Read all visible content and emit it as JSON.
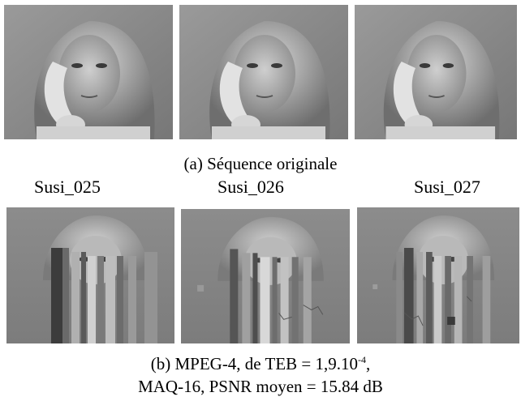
{
  "original": {
    "caption": "(a) Séquence originale"
  },
  "sequence_labels": [
    "Susi_025",
    "Susi_026",
    "Susi_027"
  ],
  "decoded": {
    "caption_line1_prefix": "(b) MPEG-4, de TEB = 1,9.10",
    "caption_line1_exponent": "-4",
    "caption_line1_suffix": ",",
    "caption_line2": "MAQ-16, PSNR moyen = 15.84 dB"
  }
}
